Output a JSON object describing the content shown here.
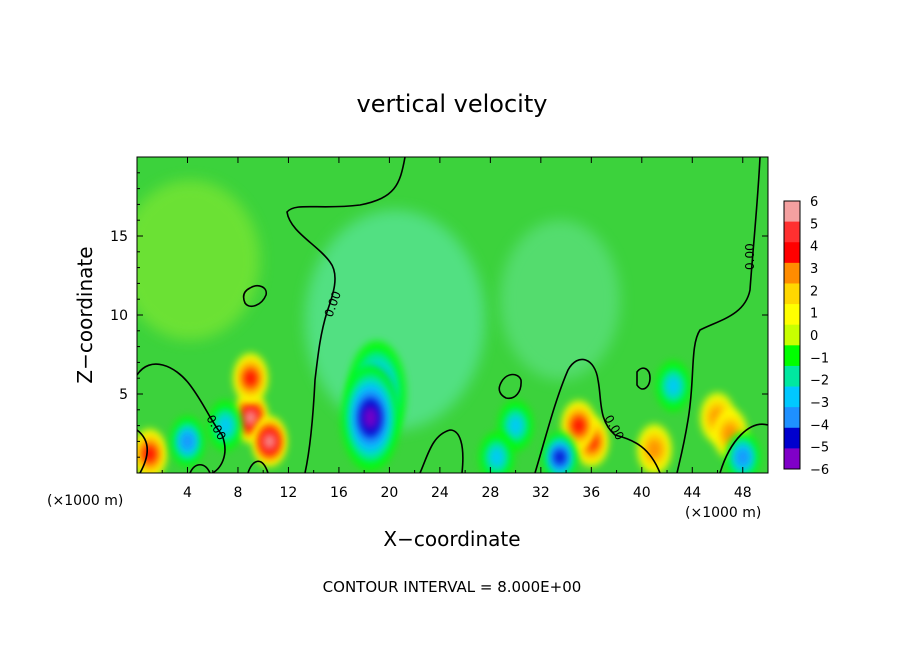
{
  "chart_data": {
    "type": "heatmap",
    "title": "vertical velocity",
    "xlabel": "X−coordinate",
    "ylabel": "Z−coordinate",
    "x_unit_left": "(×1000 m)",
    "x_unit_right": "(×1000 m)",
    "footer": "CONTOUR INTERVAL = 8.000E+00",
    "xlim": [
      0,
      50
    ],
    "ylim": [
      0,
      20
    ],
    "x_ticks": [
      4,
      8,
      12,
      16,
      20,
      24,
      28,
      32,
      36,
      40,
      44,
      48
    ],
    "x_tick_labels": [
      "4",
      "8",
      "12",
      "16",
      "20",
      "24",
      "28",
      "32",
      "36",
      "40",
      "44",
      "48"
    ],
    "y_ticks": [
      5,
      10,
      15
    ],
    "y_tick_labels": [
      "5",
      "10",
      "15"
    ],
    "colorbar": {
      "levels": [
        6,
        5,
        4,
        3,
        2,
        1,
        0,
        -1,
        -2,
        -3,
        -4,
        -5,
        -6
      ],
      "labels": [
        "6",
        "5",
        "4",
        "3",
        "2",
        "1",
        "0",
        "−1",
        "−2",
        "−3",
        "−4",
        "−5",
        "−6"
      ],
      "colors": [
        "#f4a0a0",
        "#ff3030",
        "#ff0000",
        "#ff8c00",
        "#ffd700",
        "#ffff00",
        "#c8ff00",
        "#00ff00",
        "#00e8a0",
        "#00c8ff",
        "#1e90ff",
        "#0000cd",
        "#8000c8"
      ]
    },
    "contour_labels": [
      "0.00",
      "0.00",
      "0.00",
      "0.00"
    ],
    "features": [
      {
        "kind": "updraft",
        "x": 9,
        "z": 3.5,
        "value": 6
      },
      {
        "kind": "updraft",
        "x": 10.5,
        "z": 2,
        "value": 6
      },
      {
        "kind": "updraft",
        "x": 9,
        "z": 6,
        "value": 4
      },
      {
        "kind": "updraft",
        "x": 1,
        "z": 1.2,
        "value": 4
      },
      {
        "kind": "updraft",
        "x": 36,
        "z": 2,
        "value": 4
      },
      {
        "kind": "updraft",
        "x": 35,
        "z": 3,
        "value": 4
      },
      {
        "kind": "updraft",
        "x": 46,
        "z": 3.5,
        "value": 3
      },
      {
        "kind": "updraft",
        "x": 47,
        "z": 2.5,
        "value": 3
      },
      {
        "kind": "updraft",
        "x": 41,
        "z": 1.5,
        "value": 3
      },
      {
        "kind": "downdraft",
        "x": 19,
        "z": 5,
        "value": -5
      },
      {
        "kind": "downdraft",
        "x": 18.5,
        "z": 3.5,
        "value": -6
      },
      {
        "kind": "downdraft",
        "x": 4,
        "z": 2,
        "value": -4
      },
      {
        "kind": "downdraft",
        "x": 7,
        "z": 3,
        "value": -3
      },
      {
        "kind": "downdraft",
        "x": 33.5,
        "z": 1,
        "value": -5
      },
      {
        "kind": "downdraft",
        "x": 48,
        "z": 1,
        "value": -4
      },
      {
        "kind": "downdraft",
        "x": 30,
        "z": 3,
        "value": -3
      },
      {
        "kind": "downdraft",
        "x": 42.5,
        "z": 5.5,
        "value": -3
      },
      {
        "kind": "downdraft",
        "x": 28.5,
        "z": 1,
        "value": -3
      }
    ]
  }
}
